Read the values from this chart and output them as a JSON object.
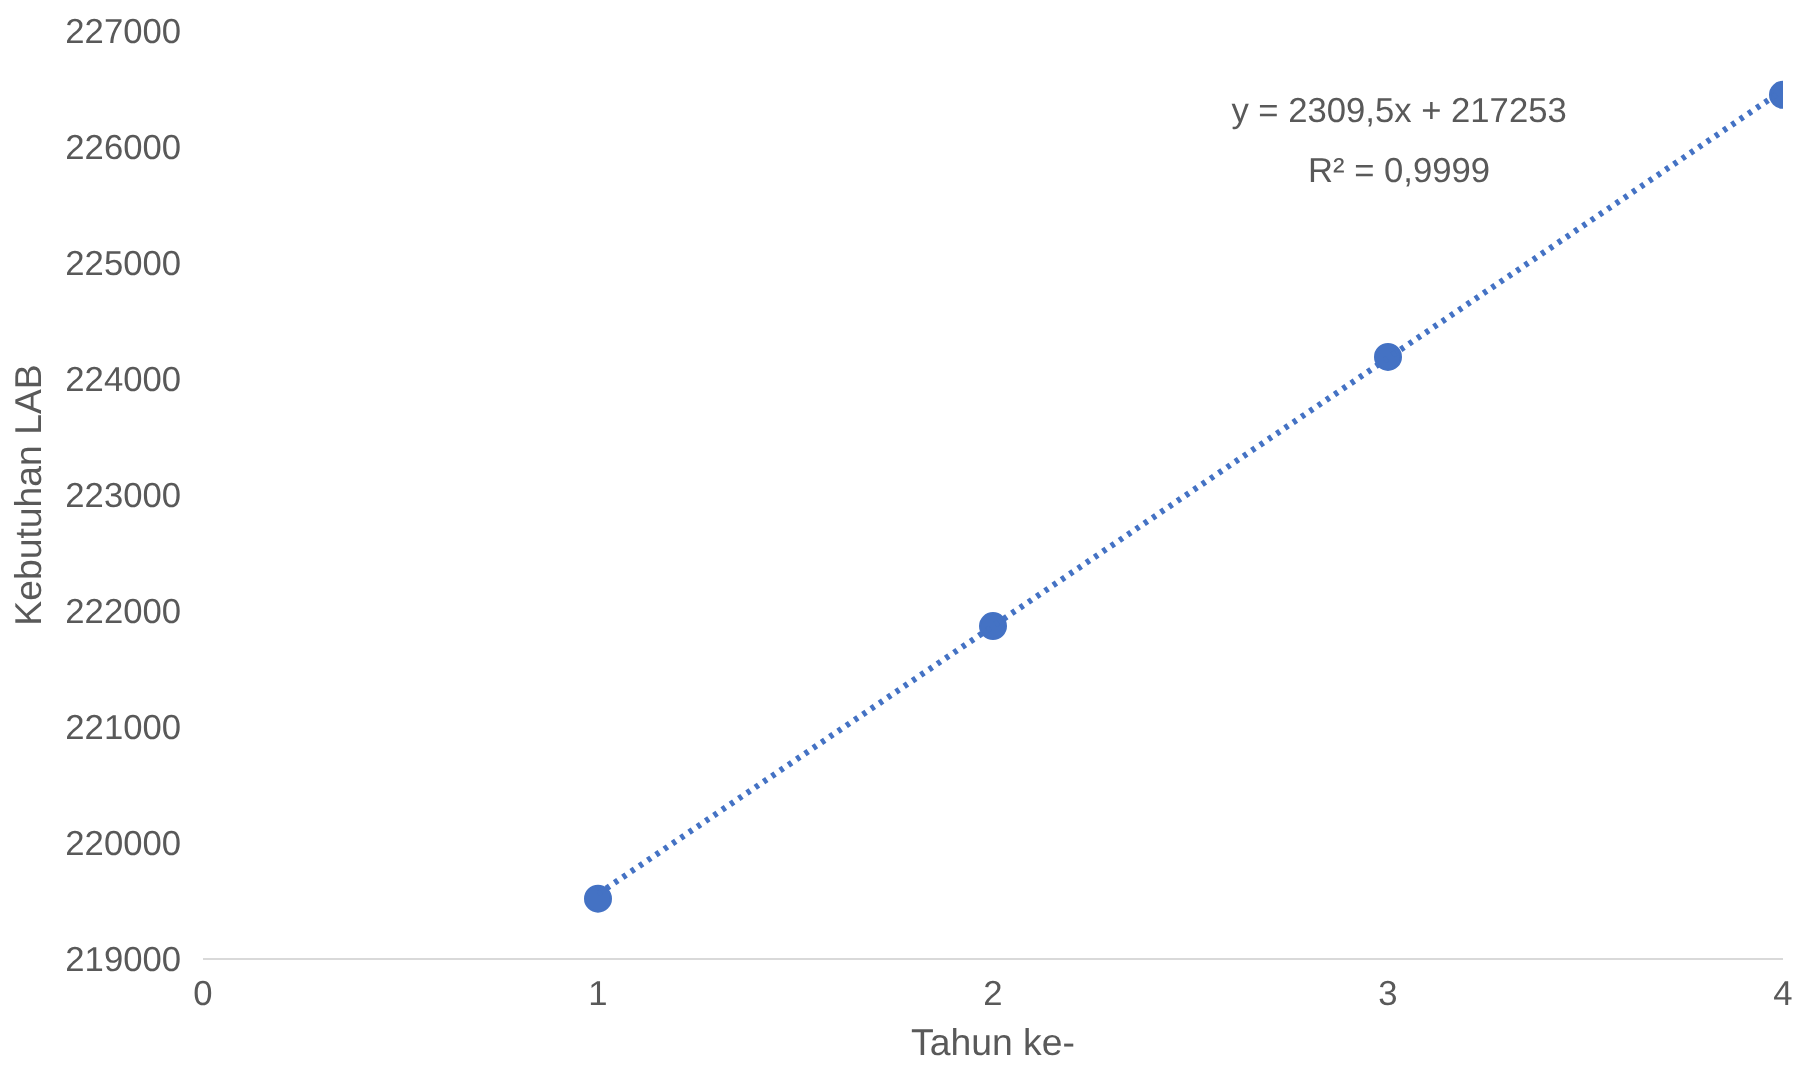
{
  "chart_data": {
    "type": "scatter",
    "xlabel": "Tahun ke-",
    "ylabel": "Kebutuhan LAB",
    "xlim": [
      0,
      4
    ],
    "xticks": [
      0,
      1,
      2,
      3,
      4
    ],
    "ylim": [
      219000,
      227000
    ],
    "yticks": [
      219000,
      220000,
      221000,
      222000,
      223000,
      224000,
      225000,
      226000,
      227000
    ],
    "grid": false,
    "series": [
      {
        "color": "#4472c4",
        "marker": "circle",
        "x": [
          1,
          2,
          3,
          4
        ],
        "values": [
          219520,
          221870,
          224190,
          226450
        ]
      },
      {
        "type": "line",
        "color": "#4472c4",
        "line_style": "dotted",
        "x": [
          1,
          4
        ],
        "values": [
          219560,
          226490
        ]
      }
    ],
    "annotations": [
      "y = 2309,5x + 217253",
      "R² = 0,9999"
    ]
  }
}
